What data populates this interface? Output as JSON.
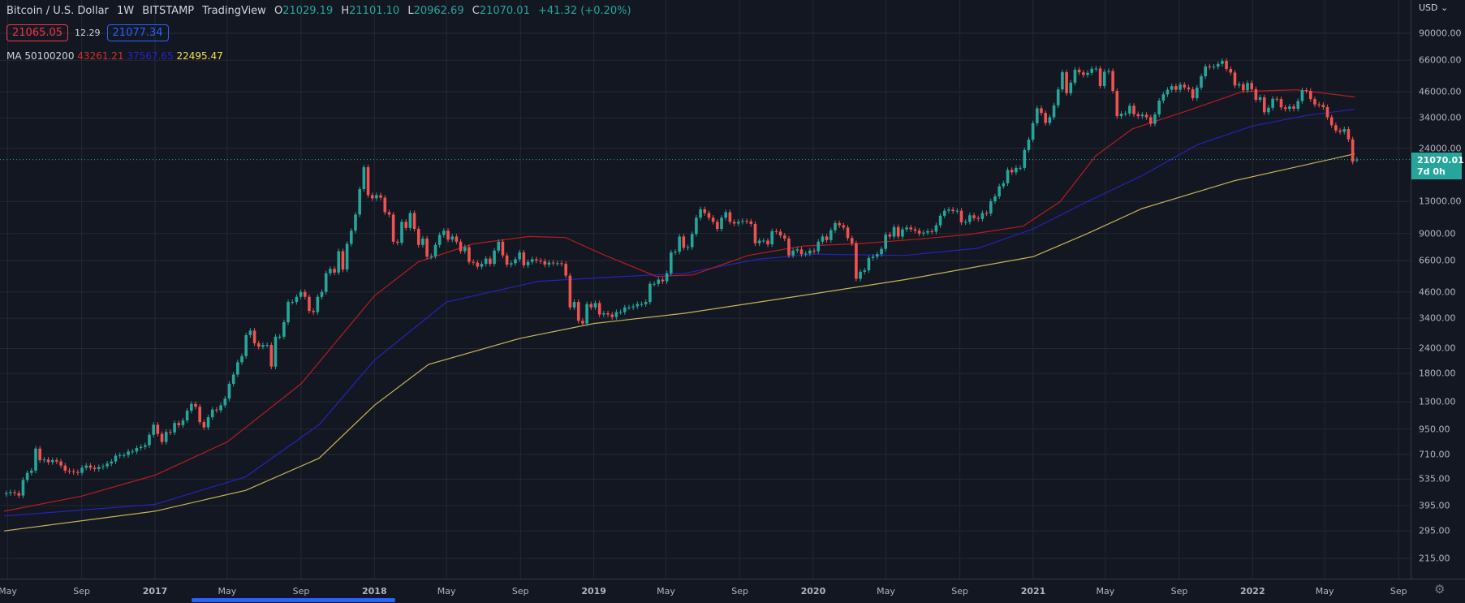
{
  "header": {
    "title": "Bitcoin / U.S. Dollar",
    "interval": "1W",
    "exchange": "BITSTAMP",
    "source": "TradingView",
    "o_label": "O",
    "open": "21029.19",
    "h_label": "H",
    "high": "21101.10",
    "l_label": "L",
    "low": "20962.69",
    "c_label": "C",
    "close": "21070.01",
    "change": "+41.32 (+0.20%)"
  },
  "quote": {
    "sell": "21065.05",
    "spread": "12.29",
    "buy": "21077.34"
  },
  "ma_legend": {
    "label": "MA 50100200",
    "ma50": "43261.21",
    "ma100": "37567.65",
    "ma200": "22495.47"
  },
  "price_axis": {
    "currency": "USD",
    "ticks": [
      "90000.00",
      "66000.00",
      "46000.00",
      "34000.00",
      "24000.00",
      "13000.00",
      "9000.00",
      "6600.00",
      "4600.00",
      "3400.00",
      "2400.00",
      "1800.00",
      "1300.00",
      "950.00",
      "710.00",
      "535.00",
      "395.00",
      "295.00",
      "215.00"
    ],
    "current_price": "21070.01",
    "countdown": "7d 0h",
    "scale": "log"
  },
  "time_axis": {
    "ticks": [
      [
        "May",
        "2016-05-01"
      ],
      [
        "Sep",
        "2016-09-01"
      ],
      [
        "2017",
        "2017-01-01"
      ],
      [
        "May",
        "2017-05-01"
      ],
      [
        "Sep",
        "2017-09-01"
      ],
      [
        "2018",
        "2018-01-01"
      ],
      [
        "May",
        "2018-05-01"
      ],
      [
        "Sep",
        "2018-09-01"
      ],
      [
        "2019",
        "2019-01-01"
      ],
      [
        "May",
        "2019-05-01"
      ],
      [
        "Sep",
        "2019-09-01"
      ],
      [
        "2020",
        "2020-01-01"
      ],
      [
        "May",
        "2020-05-01"
      ],
      [
        "Sep",
        "2020-09-01"
      ],
      [
        "2021",
        "2021-01-01"
      ],
      [
        "May",
        "2021-05-01"
      ],
      [
        "Sep",
        "2021-09-01"
      ],
      [
        "2022",
        "2022-01-01"
      ],
      [
        "May",
        "2022-05-01"
      ],
      [
        "Sep",
        "2022-09-01"
      ]
    ]
  },
  "colors": {
    "background": "#131722",
    "up": "#26a69a",
    "down": "#ef5350",
    "ma50": "#b71c1c",
    "ma100": "#2424b8",
    "ma200": "#c9b458",
    "grid": "#242833"
  },
  "chart_data": {
    "type": "candlestick",
    "interval": "1W",
    "first_candle_week": "2016-04-25",
    "first_open": 450,
    "last_open": 21029.19,
    "closes": [
      455,
      460,
      455,
      443,
      530,
      575,
      590,
      760,
      665,
      670,
      650,
      665,
      655,
      625,
      590,
      585,
      580,
      575,
      610,
      625,
      610,
      600,
      615,
      620,
      640,
      655,
      700,
      705,
      705,
      735,
      735,
      765,
      775,
      790,
      890,
      1000,
      900,
      820,
      920,
      915,
      1020,
      995,
      1050,
      1175,
      1270,
      1230,
      1030,
      970,
      1090,
      1190,
      1180,
      1250,
      1350,
      1600,
      1780,
      2050,
      2200,
      2800,
      2950,
      2550,
      2450,
      2500,
      2500,
      1950,
      2750,
      2750,
      3250,
      4100,
      4100,
      4350,
      4600,
      4350,
      3700,
      3650,
      4350,
      4600,
      5700,
      6000,
      5750,
      7350,
      5950,
      8000,
      9300,
      11200,
      15000,
      19300,
      14000,
      13500,
      14000,
      13600,
      11500,
      11200,
      8200,
      8100,
      10300,
      9600,
      11400,
      9500,
      7900,
      8500,
      6900,
      6950,
      7900,
      8850,
      9300,
      8400,
      8700,
      8200,
      7350,
      7700,
      6500,
      6450,
      6150,
      6350,
      6750,
      6350,
      7400,
      8200,
      7000,
      6300,
      6400,
      6700,
      7250,
      6250,
      6500,
      6700,
      6600,
      6550,
      6300,
      6450,
      6400,
      6400,
      6350,
      5550,
      3850,
      4100,
      3300,
      3200,
      4000,
      3850,
      4050,
      3550,
      3600,
      3550,
      3450,
      3650,
      3650,
      3850,
      3850,
      3900,
      4000,
      4000,
      4100,
      5050,
      5050,
      5300,
      5200,
      5700,
      7250,
      7300,
      8700,
      7650,
      7700,
      8950,
      10800,
      11900,
      11400,
      10800,
      10300,
      9500,
      10800,
      11500,
      10300,
      10100,
      10300,
      10400,
      10350,
      10050,
      8050,
      8300,
      8300,
      7950,
      9250,
      9200,
      8800,
      8500,
      7000,
      7400,
      7500,
      7100,
      7150,
      7400,
      7350,
      8200,
      8700,
      8350,
      9350,
      10150,
      9900,
      9650,
      8550,
      8050,
      5350,
      5800,
      5900,
      6800,
      6900,
      7100,
      7550,
      8900,
      8700,
      9700,
      8700,
      9450,
      9650,
      9450,
      9300,
      9000,
      9100,
      9250,
      9200,
      9900,
      11050,
      11700,
      11850,
      11650,
      11700,
      10250,
      10300,
      11100,
      10750,
      10650,
      11400,
      11350,
      13050,
      13800,
      15500,
      16050,
      18700,
      18200,
      19150,
      19150,
      23500,
      26500,
      32000,
      38000,
      36000,
      32100,
      34300,
      39300,
      47200,
      57500,
      45200,
      51000,
      59200,
      57400,
      55800,
      57100,
      59800,
      60000,
      49100,
      57800,
      58300,
      46400,
      34700,
      35700,
      35800,
      39100,
      35500,
      34700,
      35300,
      34300,
      31800,
      35400,
      41500,
      44600,
      47000,
      49000,
      47000,
      49900,
      48300,
      47300,
      42700,
      48200,
      54900,
      61500,
      61200,
      61300,
      63300,
      65500,
      59700,
      57300,
      49400,
      50100,
      46700,
      50800,
      47300,
      41900,
      43100,
      36300,
      38200,
      42400,
      42200,
      38400,
      37700,
      38800,
      37800,
      41300,
      46800,
      46400,
      42200,
      39700,
      39500,
      38500,
      34300,
      31300,
      29450,
      29000,
      29900,
      26600,
      20550,
      21070.01
    ],
    "moving_averages": {
      "ma50": [
        [
          "2016-04-25",
          370
        ],
        [
          "2016-09-01",
          440
        ],
        [
          "2017-01-01",
          560
        ],
        [
          "2017-05-01",
          820
        ],
        [
          "2017-09-01",
          1600
        ],
        [
          "2018-01-01",
          4400
        ],
        [
          "2018-03-15",
          6500
        ],
        [
          "2018-06-15",
          8000
        ],
        [
          "2018-09-15",
          8700
        ],
        [
          "2018-11-15",
          8600
        ],
        [
          "2019-01-15",
          7100
        ],
        [
          "2019-04-15",
          5500
        ],
        [
          "2019-06-15",
          5600
        ],
        [
          "2019-09-15",
          7000
        ],
        [
          "2019-12-15",
          7800
        ],
        [
          "2020-03-15",
          8000
        ],
        [
          "2020-06-15",
          8400
        ],
        [
          "2020-09-15",
          8900
        ],
        [
          "2020-12-15",
          9800
        ],
        [
          "2021-02-15",
          13000
        ],
        [
          "2021-04-15",
          22000
        ],
        [
          "2021-06-15",
          30000
        ],
        [
          "2021-09-15",
          37000
        ],
        [
          "2021-12-15",
          46000
        ],
        [
          "2022-03-15",
          47000
        ],
        [
          "2022-06-20",
          43261.21
        ]
      ],
      "ma100": [
        [
          "2016-04-25",
          350
        ],
        [
          "2017-01-01",
          400
        ],
        [
          "2017-06-01",
          550
        ],
        [
          "2017-10-01",
          1000
        ],
        [
          "2018-01-01",
          2100
        ],
        [
          "2018-05-01",
          4100
        ],
        [
          "2018-10-01",
          5200
        ],
        [
          "2019-01-01",
          5400
        ],
        [
          "2019-06-01",
          5700
        ],
        [
          "2019-10-01",
          6700
        ],
        [
          "2020-01-01",
          7100
        ],
        [
          "2020-06-01",
          7000
        ],
        [
          "2020-10-01",
          7600
        ],
        [
          "2021-01-01",
          9500
        ],
        [
          "2021-04-01",
          13000
        ],
        [
          "2021-07-01",
          17500
        ],
        [
          "2021-10-01",
          25000
        ],
        [
          "2022-01-01",
          31000
        ],
        [
          "2022-04-01",
          35000
        ],
        [
          "2022-06-20",
          37567.65
        ]
      ],
      "ma200": [
        [
          "2016-04-25",
          295
        ],
        [
          "2017-01-01",
          370
        ],
        [
          "2017-06-01",
          470
        ],
        [
          "2017-10-01",
          680
        ],
        [
          "2018-01-01",
          1250
        ],
        [
          "2018-04-01",
          2000
        ],
        [
          "2018-09-01",
          2700
        ],
        [
          "2019-01-01",
          3200
        ],
        [
          "2019-06-01",
          3600
        ],
        [
          "2020-01-01",
          4500
        ],
        [
          "2020-06-01",
          5300
        ],
        [
          "2021-01-01",
          6900
        ],
        [
          "2021-04-01",
          9000
        ],
        [
          "2021-07-01",
          12000
        ],
        [
          "2021-12-01",
          16500
        ],
        [
          "2022-06-20",
          22495.47
        ]
      ]
    }
  }
}
